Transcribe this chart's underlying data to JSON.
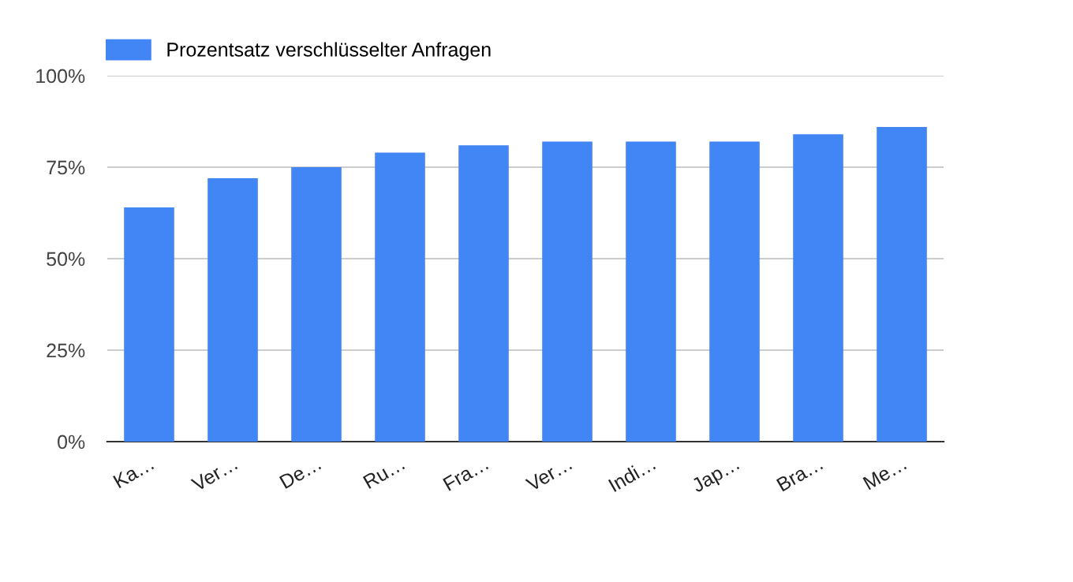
{
  "chart_data": {
    "type": "bar",
    "categories": [
      "Ka…",
      "Ver…",
      "De…",
      "Ru…",
      "Fra…",
      "Ver…",
      "Indi…",
      "Jap…",
      "Bra…",
      "Me…"
    ],
    "series": [
      {
        "name": "Prozentsatz verschlüsselter Anfragen",
        "color": "#4285f4",
        "values": [
          64,
          72,
          75,
          79,
          81,
          82,
          82,
          82,
          84,
          86
        ]
      }
    ],
    "ylim": [
      0,
      100
    ],
    "yticks": [
      {
        "value": 0,
        "label": "0%"
      },
      {
        "value": 25,
        "label": "25%"
      },
      {
        "value": 50,
        "label": "50%"
      },
      {
        "value": 75,
        "label": "75%"
      },
      {
        "value": 100,
        "label": "100%"
      }
    ],
    "grid": "y",
    "legend": "top left"
  }
}
